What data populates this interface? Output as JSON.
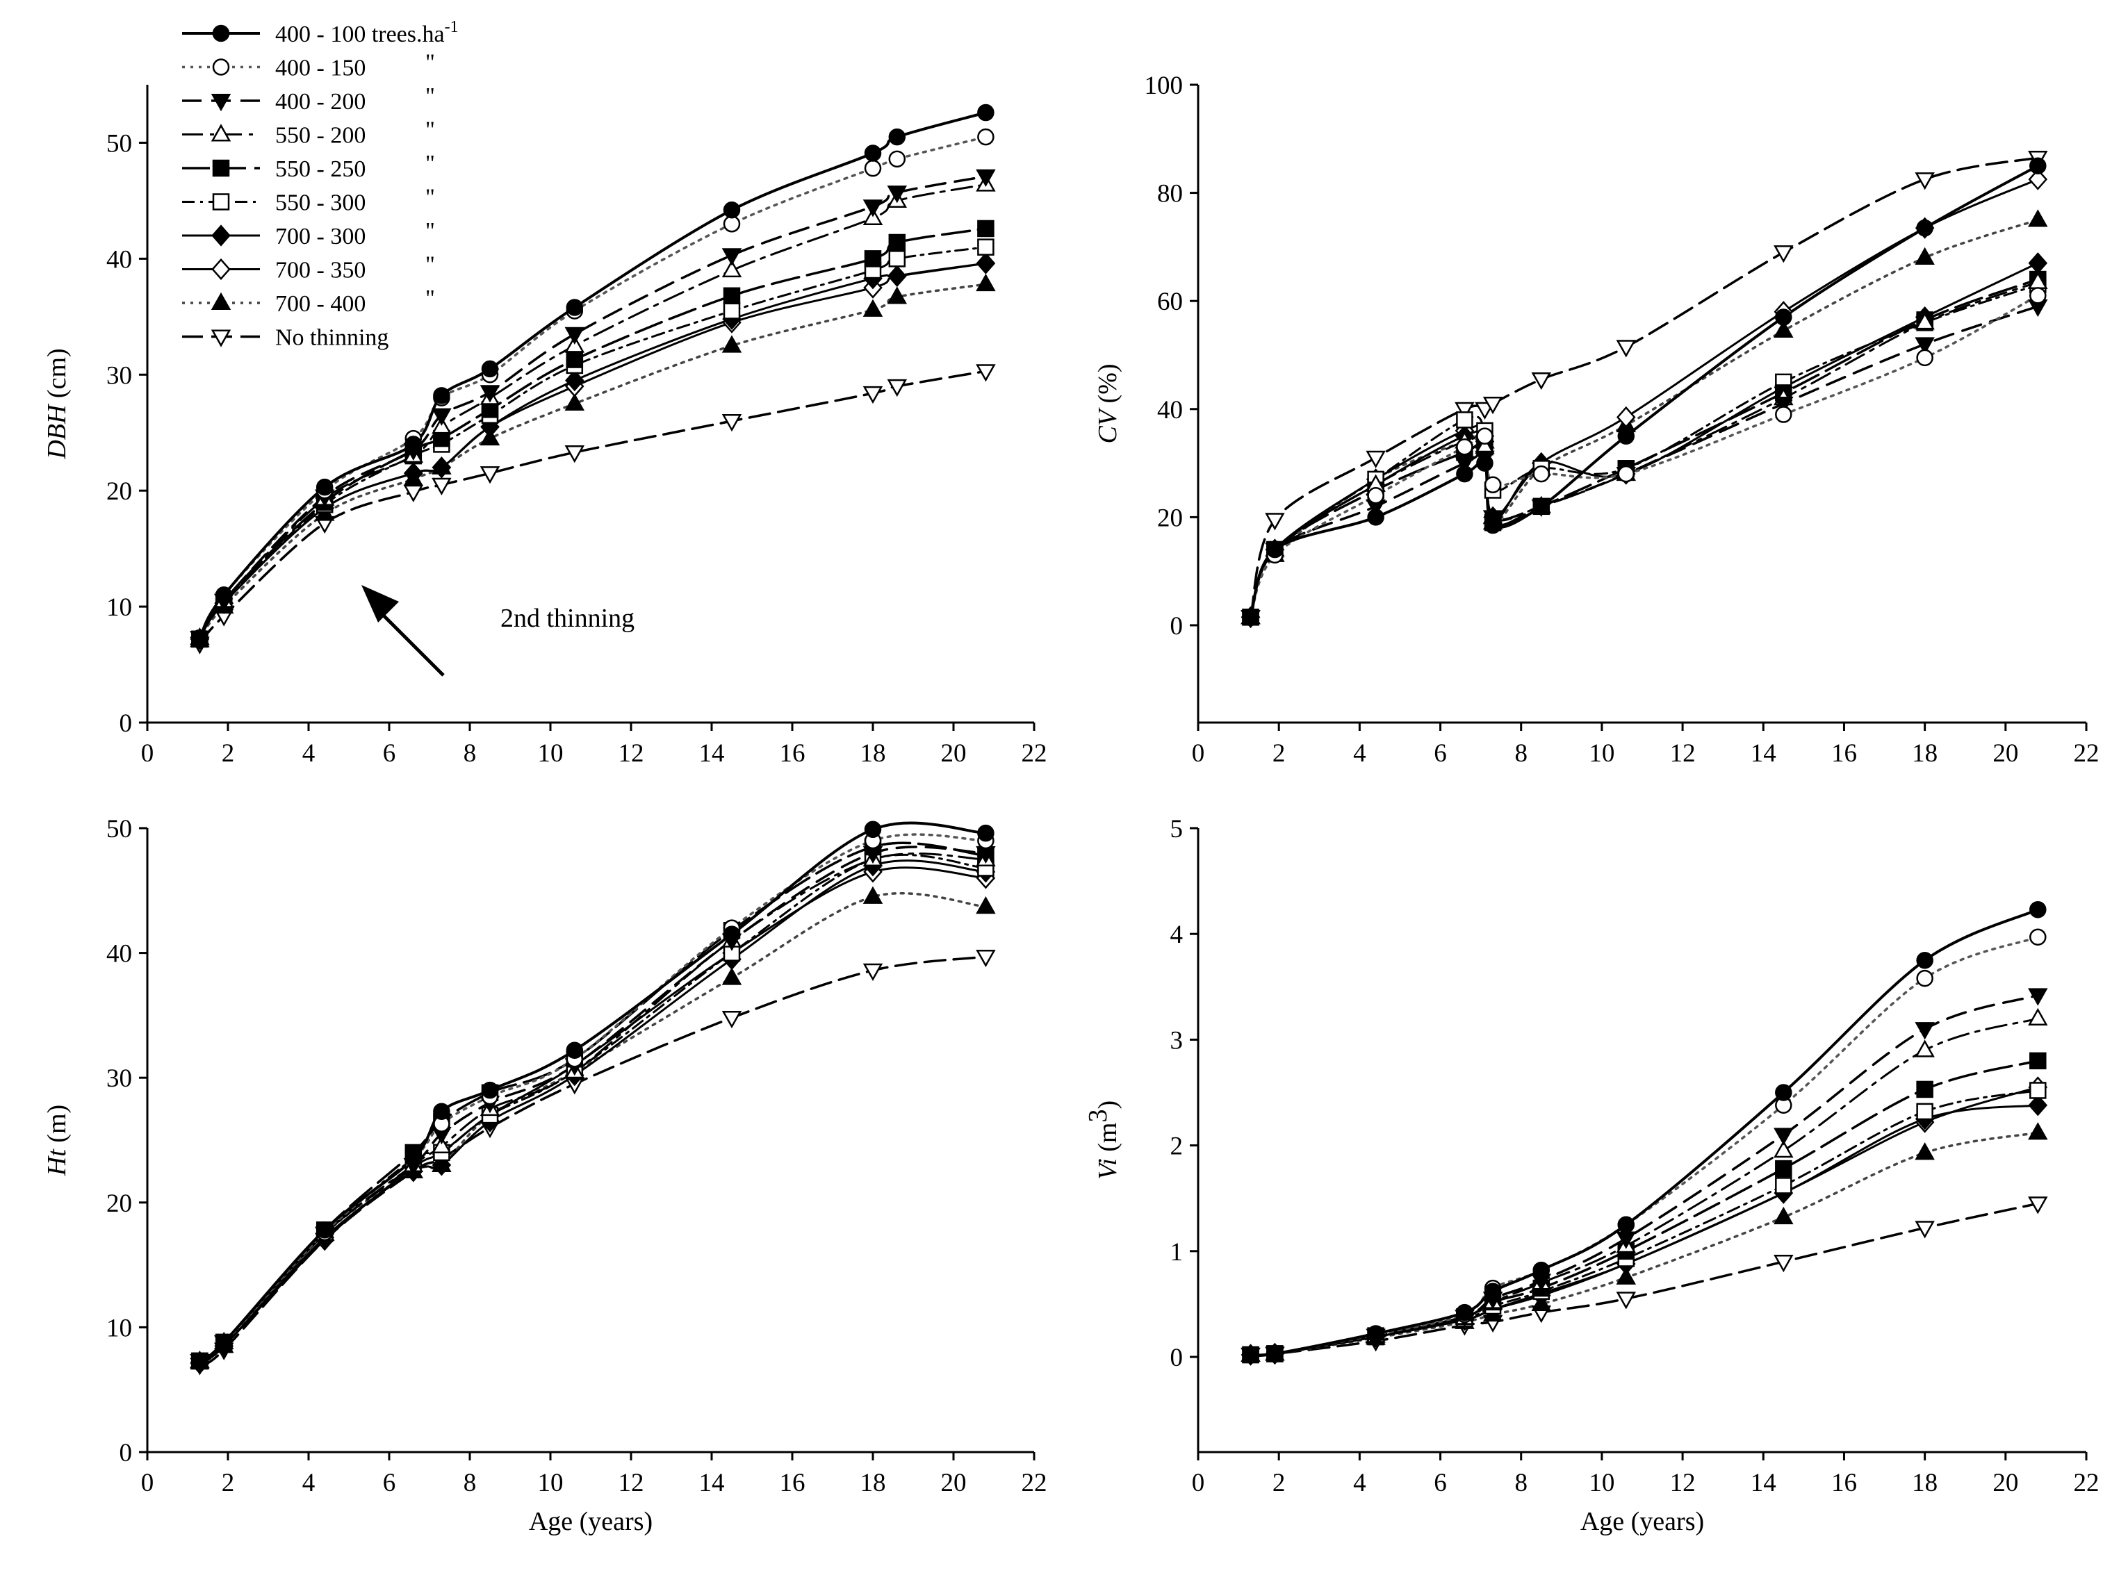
{
  "legend": {
    "items": [
      {
        "label": "400 - 100 trees.ha",
        "sup": "-1",
        "ditto": ""
      },
      {
        "label": "400 - 150",
        "sup": "",
        "ditto": "\""
      },
      {
        "label": "400 - 200",
        "sup": "",
        "ditto": "\""
      },
      {
        "label": "550 - 200",
        "sup": "",
        "ditto": "\""
      },
      {
        "label": "550 - 250",
        "sup": "",
        "ditto": "\""
      },
      {
        "label": "550 - 300",
        "sup": "",
        "ditto": "\""
      },
      {
        "label": "700 - 300",
        "sup": "",
        "ditto": "\""
      },
      {
        "label": "700 - 350",
        "sup": "",
        "ditto": "\""
      },
      {
        "label": "700 - 400",
        "sup": "",
        "ditto": "\""
      },
      {
        "label": "No thinning",
        "sup": "",
        "ditto": ""
      }
    ]
  },
  "annotation": {
    "text": "2nd thinning"
  },
  "chart_data": [
    {
      "type": "line",
      "panel": "top-left",
      "ylabel_italic": "DBH",
      "ylabel_rest": " (cm)",
      "xlabel": "",
      "xlim": [
        0,
        22
      ],
      "ylim": [
        0,
        55
      ],
      "xticks": [
        "0",
        "2",
        "4",
        "6",
        "8",
        "10",
        "12",
        "14",
        "16",
        "18",
        "20",
        "22"
      ],
      "yticks": [
        "0",
        "10",
        "20",
        "30",
        "40",
        "50"
      ],
      "x": [
        1.3,
        1.9,
        4.4,
        6.6,
        7.3,
        8.5,
        10.6,
        14.5,
        18.0,
        18.6,
        20.8
      ],
      "series": [
        {
          "name": "400 - 100 trees.ha-1",
          "values": [
            7.3,
            11.0,
            20.3,
            24.0,
            28.2,
            30.5,
            35.8,
            44.2,
            49.1,
            50.5,
            52.6
          ]
        },
        {
          "name": "400 - 150",
          "values": [
            7.3,
            11.0,
            20.0,
            24.5,
            28.0,
            30.0,
            35.5,
            43.0,
            47.8,
            48.6,
            50.5
          ]
        },
        {
          "name": "400 - 200",
          "values": [
            7.3,
            10.5,
            19.5,
            23.5,
            26.5,
            28.5,
            33.5,
            40.3,
            44.5,
            45.7,
            47.1
          ]
        },
        {
          "name": "550 - 200",
          "values": [
            7.3,
            10.5,
            19.3,
            23.0,
            25.5,
            28.0,
            32.5,
            39.0,
            43.5,
            45.0,
            46.4
          ]
        },
        {
          "name": "550 - 250",
          "values": [
            7.2,
            10.5,
            19.0,
            23.5,
            24.5,
            27.0,
            31.3,
            36.8,
            40.0,
            41.4,
            42.6
          ]
        },
        {
          "name": "550 - 300",
          "values": [
            7.2,
            10.5,
            18.8,
            23.0,
            24.0,
            26.5,
            30.8,
            35.5,
            39.0,
            40.0,
            41.0
          ]
        },
        {
          "name": "700 - 300",
          "values": [
            7.2,
            10.3,
            18.5,
            21.5,
            22.0,
            25.5,
            29.5,
            34.8,
            38.3,
            38.5,
            39.6
          ]
        },
        {
          "name": "700 - 350",
          "values": [
            7.2,
            10.3,
            18.5,
            21.5,
            22.0,
            25.5,
            29.0,
            34.5,
            37.5,
            38.5,
            39.6
          ]
        },
        {
          "name": "700 - 400",
          "values": [
            7.1,
            10.0,
            18.0,
            21.0,
            22.0,
            24.5,
            27.5,
            32.5,
            35.6,
            36.7,
            37.8
          ]
        },
        {
          "name": "No thinning",
          "values": [
            6.8,
            9.2,
            17.2,
            19.9,
            20.5,
            21.5,
            23.3,
            26.0,
            28.4,
            29.0,
            30.3
          ]
        }
      ]
    },
    {
      "type": "line",
      "panel": "top-right",
      "ylabel_italic": "CV",
      "ylabel_rest": " (%)",
      "xlabel": "",
      "xlim": [
        0,
        22
      ],
      "ylim": [
        -18,
        100
      ],
      "xticks": [
        "0",
        "2",
        "4",
        "6",
        "8",
        "10",
        "12",
        "14",
        "16",
        "18",
        "20",
        "22"
      ],
      "yticks": [
        "0",
        "20",
        "40",
        "60",
        "80",
        "100"
      ],
      "x": [
        1.3,
        1.9,
        4.4,
        6.6,
        7.1,
        7.3,
        8.5,
        10.6,
        14.5,
        18.0,
        20.8
      ],
      "series": [
        {
          "name": "400 - 100 trees.ha-1",
          "values": [
            1.5,
            14.0,
            20.0,
            28.0,
            30.0,
            18.5,
            22.0,
            35.0,
            57.0,
            73.5,
            85.0
          ]
        },
        {
          "name": "400 - 150",
          "values": [
            1.5,
            13.0,
            24.0,
            33.0,
            35.0,
            26.0,
            28.0,
            28.0,
            39.0,
            49.5,
            61.0
          ]
        },
        {
          "name": "400 - 200",
          "values": [
            1.5,
            14.0,
            22.0,
            30.0,
            31.0,
            20.0,
            22.0,
            28.0,
            41.0,
            52.0,
            59.0
          ]
        },
        {
          "name": "550 - 200",
          "values": [
            1.5,
            14.0,
            26.0,
            34.0,
            33.0,
            20.0,
            22.0,
            28.0,
            42.0,
            56.0,
            63.5
          ]
        },
        {
          "name": "550 - 250",
          "values": [
            1.5,
            14.0,
            25.0,
            32.0,
            33.0,
            19.0,
            22.0,
            29.0,
            43.0,
            56.5,
            64.0
          ]
        },
        {
          "name": "550 - 300",
          "values": [
            1.5,
            14.0,
            27.0,
            38.0,
            36.0,
            25.0,
            29.0,
            29.0,
            45.0,
            56.0,
            63.0
          ]
        },
        {
          "name": "700 - 300",
          "values": [
            1.5,
            14.0,
            26.0,
            35.0,
            34.0,
            19.0,
            30.0,
            28.0,
            44.0,
            57.0,
            67.0
          ]
        },
        {
          "name": "700 - 350",
          "values": [
            1.5,
            14.0,
            27.0,
            36.0,
            35.0,
            20.0,
            30.0,
            38.5,
            58.0,
            73.5,
            82.5
          ]
        },
        {
          "name": "700 - 400",
          "values": [
            1.5,
            13.0,
            27.0,
            34.0,
            34.0,
            19.0,
            29.0,
            37.0,
            54.5,
            68.0,
            75.0
          ]
        },
        {
          "name": "No thinning",
          "values": [
            1.5,
            19.5,
            31.0,
            40.0,
            40.0,
            41.0,
            45.5,
            51.5,
            69.0,
            82.5,
            86.5
          ]
        }
      ]
    },
    {
      "type": "line",
      "panel": "bottom-left",
      "ylabel_italic": "Ht",
      "ylabel_rest": " (m)",
      "xlabel": "Age (years)",
      "xlim": [
        0,
        22
      ],
      "ylim": [
        0,
        50
      ],
      "xticks": [
        "0",
        "2",
        "4",
        "6",
        "8",
        "10",
        "12",
        "14",
        "16",
        "18",
        "20",
        "22"
      ],
      "yticks": [
        "0",
        "10",
        "20",
        "30",
        "40",
        "50"
      ],
      "x": [
        1.3,
        1.9,
        4.4,
        6.6,
        7.3,
        8.5,
        10.6,
        14.5,
        18.0,
        20.8
      ],
      "series": [
        {
          "name": "400 - 100 trees.ha-1",
          "values": [
            7.3,
            8.8,
            17.8,
            23.5,
            27.3,
            29.0,
            32.2,
            41.5,
            49.9,
            49.6
          ]
        },
        {
          "name": "400 - 150",
          "values": [
            7.3,
            8.8,
            17.6,
            23.5,
            26.3,
            28.5,
            31.5,
            42.0,
            49.0,
            49.0
          ]
        },
        {
          "name": "400 - 200",
          "values": [
            7.3,
            8.8,
            17.5,
            23.0,
            25.5,
            28.0,
            31.0,
            41.0,
            48.0,
            48.0
          ]
        },
        {
          "name": "550 - 200",
          "values": [
            7.3,
            8.8,
            17.5,
            23.0,
            24.5,
            27.5,
            30.5,
            41.0,
            47.5,
            47.5
          ]
        },
        {
          "name": "550 - 250",
          "values": [
            7.3,
            8.8,
            17.8,
            24.0,
            26.5,
            28.8,
            31.5,
            41.8,
            48.5,
            47.8
          ]
        },
        {
          "name": "550 - 300",
          "values": [
            7.3,
            8.8,
            17.5,
            23.5,
            24.0,
            27.0,
            30.5,
            40.0,
            47.5,
            46.8
          ]
        },
        {
          "name": "700 - 300",
          "values": [
            7.2,
            8.5,
            17.2,
            22.5,
            23.0,
            26.5,
            30.2,
            39.5,
            47.0,
            46.5
          ]
        },
        {
          "name": "700 - 350",
          "values": [
            7.1,
            8.5,
            17.0,
            22.8,
            24.0,
            27.0,
            31.0,
            40.0,
            46.5,
            46.0
          ]
        },
        {
          "name": "700 - 400",
          "values": [
            7.2,
            8.5,
            17.5,
            22.5,
            23.0,
            27.0,
            30.5,
            38.0,
            44.5,
            43.7
          ]
        },
        {
          "name": "No thinning",
          "values": [
            7.0,
            8.2,
            17.0,
            22.5,
            23.5,
            26.0,
            29.5,
            34.8,
            38.6,
            39.7
          ]
        }
      ]
    },
    {
      "type": "line",
      "panel": "bottom-right",
      "ylabel_italic": "Vi",
      "ylabel_rest": " (m",
      "ylabel_sup": "3",
      "ylabel_close": ")",
      "xlabel": "Age (years)",
      "xlim": [
        0,
        22
      ],
      "ylim": [
        -0.9,
        5
      ],
      "xticks": [
        "0",
        "2",
        "4",
        "6",
        "8",
        "10",
        "12",
        "14",
        "16",
        "18",
        "20",
        "22"
      ],
      "yticks": [
        "0",
        "1",
        "2",
        "3",
        "4",
        "5"
      ],
      "x": [
        1.3,
        1.9,
        4.4,
        6.6,
        7.3,
        8.5,
        10.6,
        14.5,
        18.0,
        20.8
      ],
      "series": [
        {
          "name": "400 - 100 trees.ha-1",
          "values": [
            0.02,
            0.03,
            0.22,
            0.42,
            0.62,
            0.82,
            1.25,
            2.5,
            3.75,
            4.23
          ]
        },
        {
          "name": "400 - 150",
          "values": [
            0.02,
            0.03,
            0.21,
            0.4,
            0.65,
            0.82,
            1.25,
            2.38,
            3.58,
            3.97
          ]
        },
        {
          "name": "400 - 200",
          "values": [
            0.02,
            0.03,
            0.2,
            0.38,
            0.55,
            0.72,
            1.12,
            2.1,
            3.1,
            3.42
          ]
        },
        {
          "name": "550 - 200",
          "values": [
            0.02,
            0.03,
            0.2,
            0.37,
            0.52,
            0.7,
            1.05,
            1.95,
            2.9,
            3.2
          ]
        },
        {
          "name": "550 - 250",
          "values": [
            0.02,
            0.03,
            0.2,
            0.38,
            0.52,
            0.65,
            1.0,
            1.78,
            2.53,
            2.8
          ]
        },
        {
          "name": "550 - 300",
          "values": [
            0.02,
            0.03,
            0.19,
            0.36,
            0.48,
            0.62,
            0.93,
            1.62,
            2.32,
            2.52
          ]
        },
        {
          "name": "700 - 300",
          "values": [
            0.02,
            0.03,
            0.19,
            0.35,
            0.45,
            0.6,
            0.88,
            1.55,
            2.25,
            2.38
          ]
        },
        {
          "name": "700 - 350",
          "values": [
            0.02,
            0.03,
            0.19,
            0.35,
            0.45,
            0.58,
            0.88,
            1.55,
            2.22,
            2.55
          ]
        },
        {
          "name": "700 - 400",
          "values": [
            0.02,
            0.03,
            0.18,
            0.33,
            0.4,
            0.5,
            0.75,
            1.32,
            1.93,
            2.12
          ]
        },
        {
          "name": "No thinning",
          "values": [
            0.02,
            0.03,
            0.15,
            0.3,
            0.33,
            0.42,
            0.55,
            0.9,
            1.22,
            1.45
          ]
        }
      ]
    }
  ]
}
